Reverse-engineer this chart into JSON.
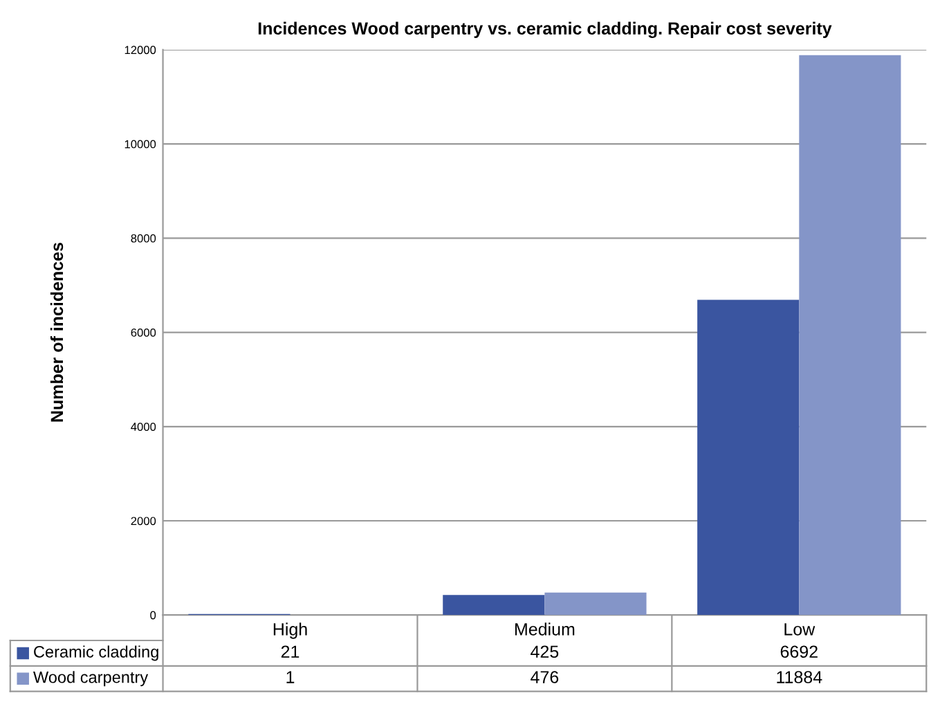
{
  "chart_data": {
    "type": "bar",
    "title": "Incidences Wood carpentry vs. ceramic cladding. Repair cost severity",
    "ylabel": "Number of incidences",
    "categories": [
      "High",
      "Medium",
      "Low"
    ],
    "series": [
      {
        "name": "Ceramic cladding",
        "color": "#3a55a0",
        "values": [
          21,
          425,
          6692
        ]
      },
      {
        "name": "Wood carpentry",
        "color": "#8495c8",
        "values": [
          1,
          476,
          11884
        ]
      }
    ],
    "ylim": [
      0,
      12000
    ],
    "yticks": [
      0,
      2000,
      4000,
      6000,
      8000,
      10000,
      12000
    ],
    "grid": "y",
    "legend": "bottom left",
    "data_labels": true
  }
}
